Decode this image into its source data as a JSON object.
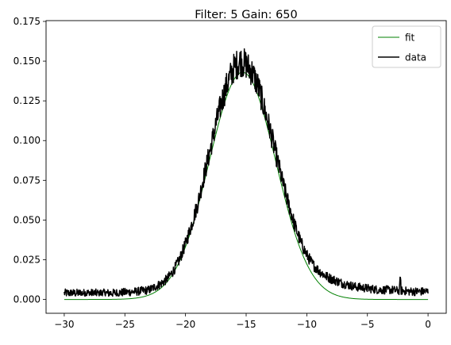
{
  "chart_data": {
    "type": "line",
    "title": "Filter: 5 Gain: 650",
    "xlabel": "",
    "ylabel": "",
    "xlim": [
      -31.5,
      1.5
    ],
    "ylim": [
      -0.0087,
      0.1755
    ],
    "xticks": [
      -30,
      -25,
      -20,
      -15,
      -10,
      -5,
      0
    ],
    "yticks": [
      0.0,
      0.025,
      0.05,
      0.075,
      0.1,
      0.125,
      0.15,
      0.175
    ],
    "xtick_labels": [
      "−30",
      "−25",
      "−20",
      "−15",
      "−10",
      "−5",
      "0"
    ],
    "ytick_labels": [
      "0.000",
      "0.025",
      "0.050",
      "0.075",
      "0.100",
      "0.125",
      "0.150",
      "0.175"
    ],
    "grid": false,
    "legend_position": "top-right",
    "series": [
      {
        "name": "fit",
        "color": "#008000",
        "line_width": 1,
        "model": "gaussian",
        "amplitude": 0.143,
        "center": -15.3,
        "sigma": 2.75,
        "baseline": 0.0
      },
      {
        "name": "data",
        "color": "#000000",
        "line_width": 1.5,
        "x": [
          -30,
          -29,
          -28,
          -27,
          -26,
          -25,
          -24,
          -23,
          -22.5,
          -22,
          -21.5,
          -21,
          -20.5,
          -20,
          -19.5,
          -19,
          -18.5,
          -18,
          -17.5,
          -17,
          -16.5,
          -16,
          -15.5,
          -15,
          -14.5,
          -14,
          -13.5,
          -13,
          -12.5,
          -12,
          -11.5,
          -11,
          -10.5,
          -10,
          -9.5,
          -9,
          -8.5,
          -8,
          -7,
          -6,
          -5,
          -4,
          -3,
          -2.5,
          -2,
          -1.5,
          -1,
          -0.5,
          0
        ],
        "y": [
          0.004,
          0.004,
          0.004,
          0.004,
          0.004,
          0.0045,
          0.005,
          0.006,
          0.008,
          0.01,
          0.013,
          0.018,
          0.025,
          0.035,
          0.047,
          0.06,
          0.077,
          0.093,
          0.11,
          0.125,
          0.137,
          0.146,
          0.15,
          0.148,
          0.143,
          0.134,
          0.12,
          0.106,
          0.09,
          0.074,
          0.06,
          0.047,
          0.036,
          0.028,
          0.022,
          0.018,
          0.015,
          0.013,
          0.01,
          0.008,
          0.007,
          0.006,
          0.006,
          0.0055,
          0.0055,
          0.005,
          0.005,
          0.005,
          0.005
        ],
        "noise_amplitude": 0.006
      }
    ]
  }
}
